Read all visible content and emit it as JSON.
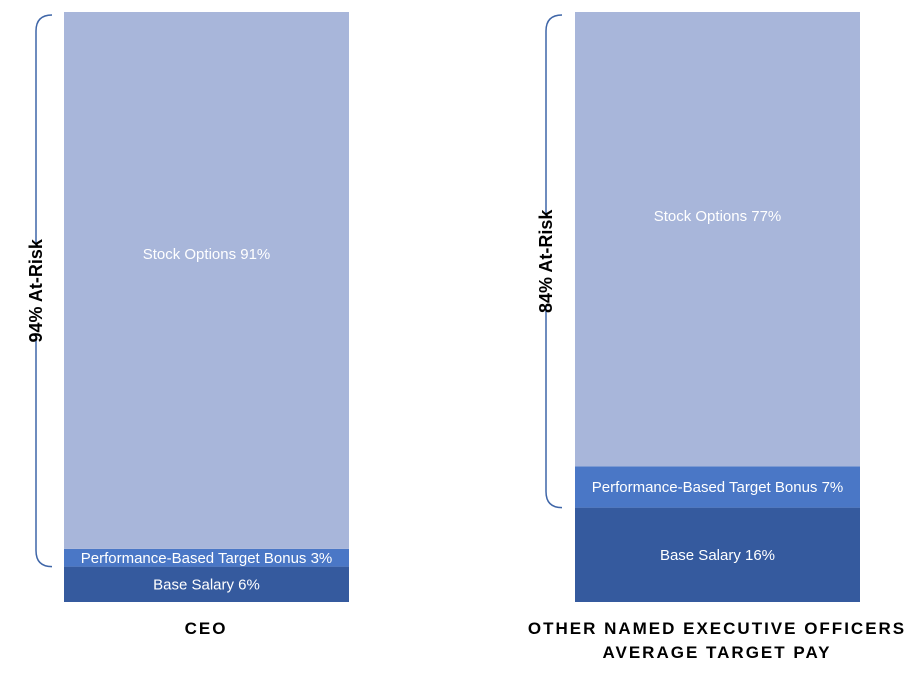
{
  "chart_data": {
    "type": "bar",
    "stacked": true,
    "percent_stacked": true,
    "categories": [
      [
        "CEO"
      ],
      [
        "OTHER NAMED EXECUTIVE OFFICERS",
        "AVERAGE TARGET PAY"
      ]
    ],
    "series": [
      {
        "key": "base_salary",
        "color": "#355a9e",
        "labels": [
          "Base Salary 6%",
          "Base Salary 16%"
        ],
        "values": [
          6,
          16
        ]
      },
      {
        "key": "performance_bonus",
        "color": "#4a77c6",
        "labels": [
          "Performance-Based Target Bonus 3%",
          "Performance-Based Target Bonus 7%"
        ],
        "values": [
          3,
          7
        ]
      },
      {
        "key": "stock_options",
        "color": "#a8b6da",
        "labels": [
          "Stock Options  91%",
          "Stock Options  77%"
        ],
        "values": [
          91,
          77
        ]
      }
    ],
    "annotations": [
      {
        "category_index": 0,
        "text": "94% At-Risk",
        "value": 94
      },
      {
        "category_index": 1,
        "text": "84% At-Risk",
        "value": 84
      }
    ],
    "ylim": [
      0,
      100
    ],
    "legend": "none",
    "grid": false,
    "bracket_color": "#3f66a8"
  }
}
